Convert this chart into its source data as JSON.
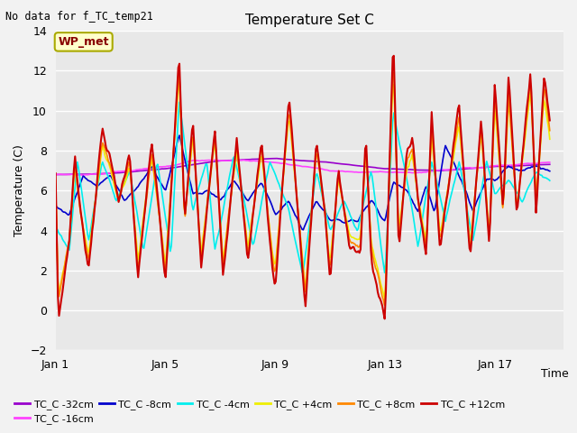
{
  "title": "Temperature Set C",
  "subtitle": "No data for f_TC_temp21",
  "xlabel": "Time",
  "ylabel": "Temperature (C)",
  "ylim": [
    -2,
    14
  ],
  "yticks": [
    -2,
    0,
    2,
    4,
    6,
    8,
    10,
    12,
    14
  ],
  "xlim_days": [
    0,
    18.5
  ],
  "xtick_positions": [
    0,
    4,
    8,
    12,
    16
  ],
  "xtick_labels": [
    "Jan 1",
    "Jan 5",
    "Jan 9",
    "Jan 13",
    "Jan 17"
  ],
  "legend_label_text": "WP_met",
  "bg_color": "#e8e8e8",
  "fig_bg": "#f2f2f2",
  "series": [
    {
      "name": "TC_C -32cm",
      "color": "#9900cc",
      "lw": 1.2
    },
    {
      "name": "TC_C -16cm",
      "color": "#ff44ff",
      "lw": 1.2
    },
    {
      "name": "TC_C -8cm",
      "color": "#0000cc",
      "lw": 1.2
    },
    {
      "name": "TC_C -4cm",
      "color": "#00eeee",
      "lw": 1.2
    },
    {
      "name": "TC_C +4cm",
      "color": "#eeee00",
      "lw": 1.2
    },
    {
      "name": "TC_C +8cm",
      "color": "#ff8800",
      "lw": 1.2
    },
    {
      "name": "TC_C +12cm",
      "color": "#cc0000",
      "lw": 1.5
    }
  ]
}
